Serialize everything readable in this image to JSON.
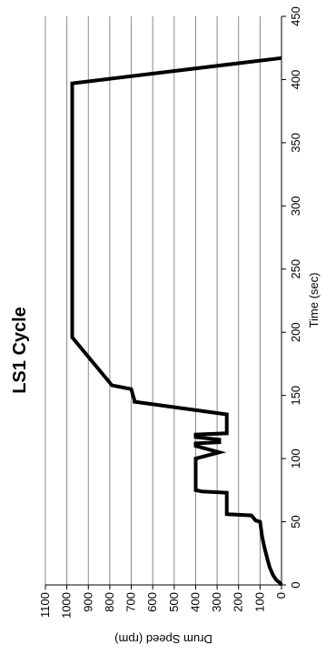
{
  "chart_data": {
    "type": "line",
    "orientation": "rotated-90-clockwise",
    "title": "LS1 Cycle",
    "xlabel": "Time (sec)",
    "ylabel": "Drum Speed (rpm)",
    "xlim": [
      0,
      450
    ],
    "ylim": [
      0,
      1100
    ],
    "xticks": [
      0,
      50,
      100,
      150,
      200,
      250,
      300,
      350,
      400,
      450
    ],
    "yticks": [
      0,
      100,
      200,
      300,
      400,
      500,
      600,
      700,
      800,
      900,
      1000,
      1100
    ],
    "grid": "horizontal at each y tick",
    "legend": "none",
    "line_color": "#000000",
    "series": [
      {
        "x": [
          0,
          2,
          4,
          8,
          14,
          20,
          30,
          38,
          50,
          51,
          55,
          56,
          73,
          74,
          75,
          100,
          105,
          110,
          112,
          113,
          115,
          117,
          119,
          120,
          135,
          135,
          145,
          146,
          155,
          158,
          196,
          197,
          396,
          397,
          417
        ],
        "y": [
          0,
          10,
          25,
          40,
          55,
          65,
          80,
          90,
          100,
          120,
          140,
          255,
          255,
          370,
          400,
          400,
          290,
          400,
          400,
          290,
          290,
          400,
          400,
          255,
          255,
          255,
          685,
          685,
          700,
          790,
          975,
          975,
          975,
          975,
          0
        ]
      }
    ]
  }
}
